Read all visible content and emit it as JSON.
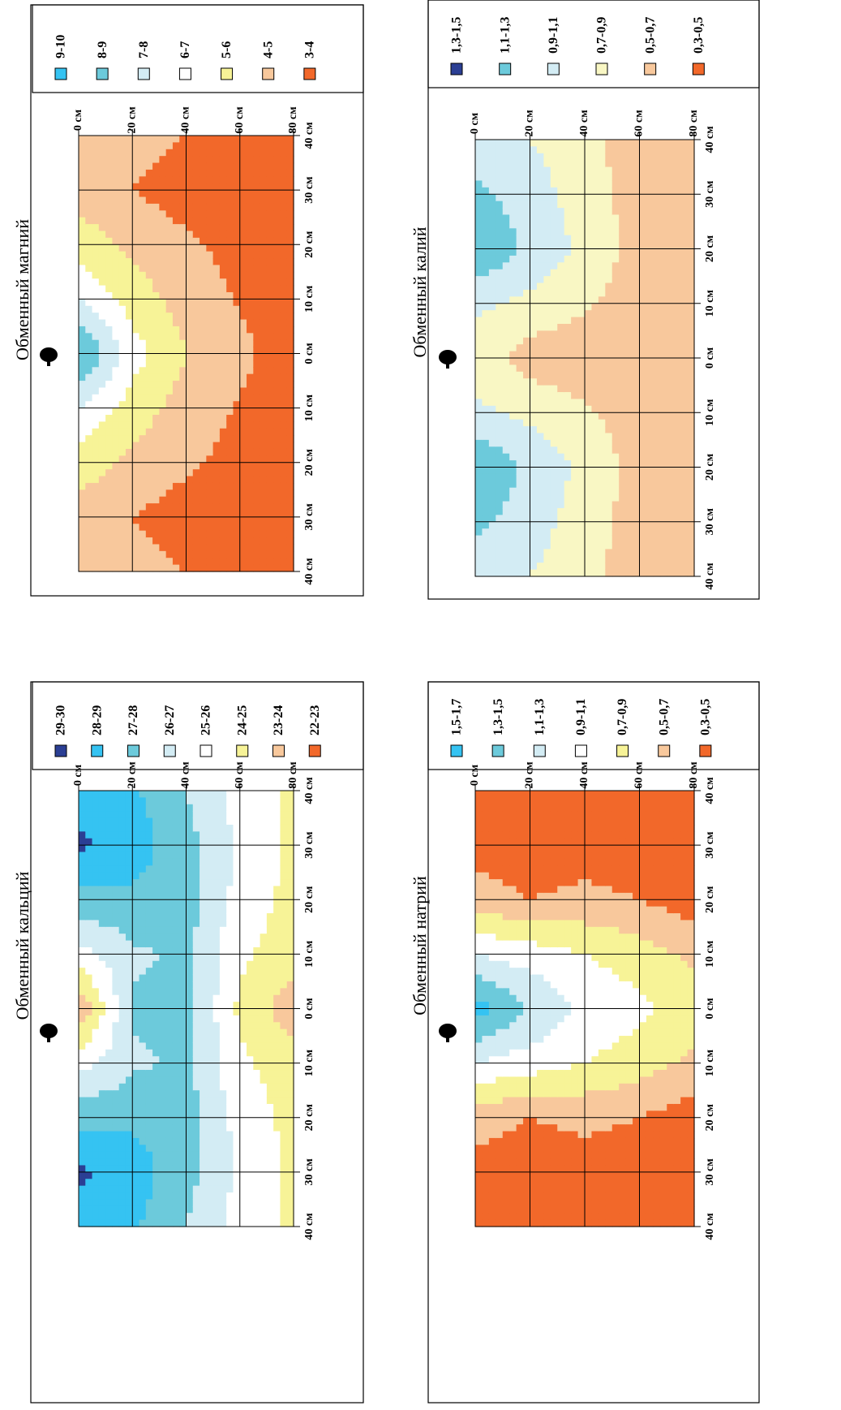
{
  "colors": {
    "dark_blue": "#2b3f94",
    "bright_blue": "#35c3f2",
    "mid_blue": "#6ccadb",
    "light_blue": "#d3ecf4",
    "white": "#ffffff",
    "pale_yellow": "#f9f7c4",
    "yellow": "#f7f397",
    "peach": "#f8c89c",
    "orange": "#f2682a",
    "grid": "#000000"
  },
  "panels": [
    {
      "id": "magnesium",
      "title": "Обменный магний",
      "tree_icon": "tree-icon",
      "depth_labels": [
        "0 см",
        "20 см",
        "40 см",
        "60 см",
        "80 см"
      ],
      "distance_labels": [
        "40 см",
        "30 см",
        "20 см",
        "10 см",
        "0 см",
        "10 см",
        "20 см",
        "30 см",
        "40 см"
      ],
      "legend": [
        {
          "label": "9-10",
          "color": "#35c3f2"
        },
        {
          "label": "8-9",
          "color": "#6ccadb"
        },
        {
          "label": "7-8",
          "color": "#d3ecf4"
        },
        {
          "label": "6-7",
          "color": "#ffffff"
        },
        {
          "label": "5-6",
          "color": "#f7f397"
        },
        {
          "label": "4-5",
          "color": "#f8c89c"
        },
        {
          "label": "3-4",
          "color": "#f2682a"
        }
      ]
    },
    {
      "id": "calcium",
      "title": "Обменный кальций",
      "tree_icon": "tree-icon",
      "depth_labels": [
        "0 см",
        "20 см",
        "40 см",
        "60 см",
        "80 см"
      ],
      "distance_labels": [
        "40 см",
        "30 см",
        "20 см",
        "10 см",
        "0 см",
        "10 см",
        "20 см",
        "30 см",
        "40 см"
      ],
      "legend": [
        {
          "label": "29-30",
          "color": "#2b3f94"
        },
        {
          "label": "28-29",
          "color": "#35c3f2"
        },
        {
          "label": "27-28",
          "color": "#6ccadb"
        },
        {
          "label": "26-27",
          "color": "#d3ecf4"
        },
        {
          "label": "25-26",
          "color": "#ffffff"
        },
        {
          "label": "24-25",
          "color": "#f7f397"
        },
        {
          "label": "23-24",
          "color": "#f8c89c"
        },
        {
          "label": "22-23",
          "color": "#f2682a"
        }
      ]
    },
    {
      "id": "potassium",
      "title": "Обменный калий",
      "tree_icon": "tree-icon",
      "depth_labels": [
        "0 см",
        "20 см",
        "40 см",
        "60 см",
        "80 см"
      ],
      "distance_labels": [
        "40 см",
        "30 см",
        "20 см",
        "10 см",
        "0 см",
        "10 см",
        "20 см",
        "30 см",
        "40 см"
      ],
      "legend": [
        {
          "label": "1,3-1,5",
          "color": "#2b3f94"
        },
        {
          "label": "1,1-1,3",
          "color": "#6ccadb"
        },
        {
          "label": "0,9-1,1",
          "color": "#d3ecf4"
        },
        {
          "label": "0,7-0,9",
          "color": "#f9f7c4"
        },
        {
          "label": "0,5-0,7",
          "color": "#f8c89c"
        },
        {
          "label": "0,3-0,5",
          "color": "#f2682a"
        }
      ]
    },
    {
      "id": "sodium",
      "title": "Обменный натрий",
      "tree_icon": "tree-icon",
      "depth_labels": [
        "0 см",
        "20 см",
        "40 см",
        "60 см",
        "80 см"
      ],
      "distance_labels": [
        "40 см",
        "30 см",
        "20 см",
        "10 см",
        "0 см",
        "10 см",
        "20 см",
        "30 см",
        "40 см"
      ],
      "legend": [
        {
          "label": "1,5-1,7",
          "color": "#35c3f2"
        },
        {
          "label": "1,3-1,5",
          "color": "#6ccadb"
        },
        {
          "label": "1,1-1,3",
          "color": "#d3ecf4"
        },
        {
          "label": "0,9-1,1",
          "color": "#ffffff"
        },
        {
          "label": "0,7-0,9",
          "color": "#f7f397"
        },
        {
          "label": "0,5-0,7",
          "color": "#f8c89c"
        },
        {
          "label": "0,3-0,5",
          "color": "#f2682a"
        }
      ]
    }
  ],
  "chart_data": [
    {
      "type": "heatmap",
      "title": "Обменный магний",
      "x": [
        "40 см",
        "30 см",
        "20 см",
        "10 см",
        "0 см",
        "10 см",
        "20 см",
        "30 см",
        "40 см"
      ],
      "y": [
        "0 см",
        "20 см",
        "40 см",
        "60 см",
        "80 см"
      ],
      "classes": [
        "9-10",
        "8-9",
        "7-8",
        "6-7",
        "5-6",
        "4-5",
        "3-4"
      ],
      "values": [
        [
          4.5,
          4.6,
          5.5,
          7.0,
          9.2,
          7.0,
          5.5,
          4.6,
          4.5
        ],
        [
          4.5,
          4.0,
          4.8,
          5.5,
          6.5,
          5.5,
          4.8,
          4.0,
          4.5
        ],
        [
          4.0,
          3.5,
          4.2,
          4.6,
          5.0,
          4.6,
          4.2,
          3.5,
          4.0
        ],
        [
          3.5,
          3.3,
          3.6,
          3.9,
          4.2,
          3.9,
          3.6,
          3.3,
          3.5
        ],
        [
          3.3,
          3.2,
          3.4,
          3.5,
          3.6,
          3.5,
          3.4,
          3.2,
          3.3
        ]
      ]
    },
    {
      "type": "heatmap",
      "title": "Обменный кальций",
      "x": [
        "40 см",
        "30 см",
        "20 см",
        "10 см",
        "0 см",
        "10 см",
        "20 см",
        "30 см",
        "40 см"
      ],
      "y": [
        "0 см",
        "20 см",
        "40 см",
        "60 см",
        "80 см"
      ],
      "classes": [
        "29-30",
        "28-29",
        "27-28",
        "26-27",
        "25-26",
        "24-25",
        "23-24",
        "22-23"
      ],
      "values": [
        [
          28.4,
          29.2,
          27.6,
          25.6,
          23.0,
          25.6,
          27.6,
          29.2,
          28.4
        ],
        [
          28.2,
          28.5,
          27.8,
          26.8,
          27.2,
          26.8,
          27.8,
          28.5,
          28.2
        ],
        [
          27.0,
          27.4,
          27.6,
          27.2,
          27.5,
          27.2,
          27.6,
          27.4,
          27.0
        ],
        [
          25.6,
          25.8,
          25.6,
          25.2,
          24.8,
          25.2,
          25.6,
          25.8,
          25.6
        ],
        [
          24.8,
          24.7,
          24.7,
          24.4,
          23.4,
          24.4,
          24.7,
          24.7,
          24.8
        ]
      ]
    },
    {
      "type": "heatmap",
      "title": "Обменный калий",
      "x": [
        "40 см",
        "30 см",
        "20 см",
        "10 см",
        "0 см",
        "10 см",
        "20 см",
        "30 см",
        "40 см"
      ],
      "y": [
        "0 см",
        "20 см",
        "40 см",
        "60 см",
        "80 см"
      ],
      "classes": [
        "1,3-1,5",
        "1,1-1,3",
        "0,9-1,1",
        "0,7-0,9",
        "0,5-0,7",
        "0,3-0,5"
      ],
      "values": [
        [
          0.95,
          1.15,
          1.3,
          0.95,
          0.8,
          0.95,
          1.3,
          1.15,
          0.95
        ],
        [
          0.9,
          1.0,
          1.05,
          0.85,
          0.6,
          0.85,
          1.05,
          1.0,
          0.9
        ],
        [
          0.75,
          0.8,
          0.85,
          0.72,
          0.6,
          0.72,
          0.85,
          0.8,
          0.75
        ],
        [
          0.6,
          0.6,
          0.62,
          0.6,
          0.58,
          0.6,
          0.62,
          0.6,
          0.6
        ],
        [
          0.55,
          0.55,
          0.55,
          0.55,
          0.55,
          0.55,
          0.55,
          0.55,
          0.55
        ]
      ]
    },
    {
      "type": "heatmap",
      "title": "Обменный натрий",
      "x": [
        "40 см",
        "30 см",
        "20 см",
        "10 см",
        "0 см",
        "10 см",
        "20 см",
        "30 см",
        "40 см"
      ],
      "y": [
        "0 см",
        "20 см",
        "40 см",
        "60 см",
        "80 см"
      ],
      "classes": [
        "1,5-1,7",
        "1,3-1,5",
        "1,1-1,3",
        "0,9-1,1",
        "0,7-0,9",
        "0,5-0,7",
        "0,3-0,5"
      ],
      "values": [
        [
          0.4,
          0.4,
          0.6,
          1.1,
          1.6,
          1.1,
          0.6,
          0.4,
          0.4
        ],
        [
          0.4,
          0.4,
          0.5,
          1.0,
          1.3,
          1.0,
          0.5,
          0.4,
          0.4
        ],
        [
          0.4,
          0.4,
          0.55,
          0.9,
          1.05,
          0.9,
          0.55,
          0.4,
          0.4
        ],
        [
          0.4,
          0.4,
          0.5,
          0.8,
          0.95,
          0.8,
          0.5,
          0.4,
          0.4
        ],
        [
          0.4,
          0.4,
          0.4,
          0.65,
          0.8,
          0.65,
          0.4,
          0.4,
          0.4
        ]
      ]
    }
  ]
}
